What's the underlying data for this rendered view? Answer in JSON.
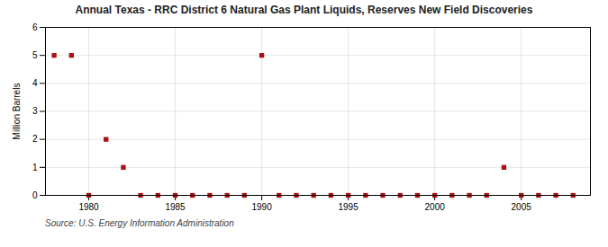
{
  "chart_data": {
    "type": "scatter",
    "title": "Annual Texas - RRC District 6 Natural Gas Plant Liquids, Reserves New Field Discoveries",
    "ylabel": "Million Barrels",
    "annotation": "Source: U.S. Energy Information Administration",
    "x": [
      1978,
      1979,
      1980,
      1981,
      1982,
      1983,
      1984,
      1985,
      1986,
      1987,
      1988,
      1989,
      1990,
      1991,
      1992,
      1993,
      1994,
      1995,
      1996,
      1997,
      1998,
      1999,
      2000,
      2001,
      2002,
      2003,
      2004,
      2005,
      2006,
      2007,
      2008
    ],
    "values": [
      5.0,
      5.0,
      0.0,
      2.0,
      1.0,
      0.0,
      0.0,
      0.0,
      0.0,
      0.0,
      0.0,
      0.0,
      5.0,
      0.0,
      0.0,
      0.0,
      0.0,
      0.0,
      0.0,
      0.0,
      0.0,
      0.0,
      0.0,
      0.0,
      0.0,
      0.0,
      1.0,
      0.0,
      0.0,
      0.0,
      0.0
    ],
    "color": "#aa1111",
    "marker": "square",
    "xlim": [
      1977.5,
      2009
    ],
    "ylim": [
      0,
      6
    ],
    "xticks": [
      1980,
      1985,
      1990,
      1995,
      2000,
      2005
    ],
    "yticks": [
      0,
      1,
      2,
      3,
      4,
      5,
      6
    ],
    "grid": true
  }
}
